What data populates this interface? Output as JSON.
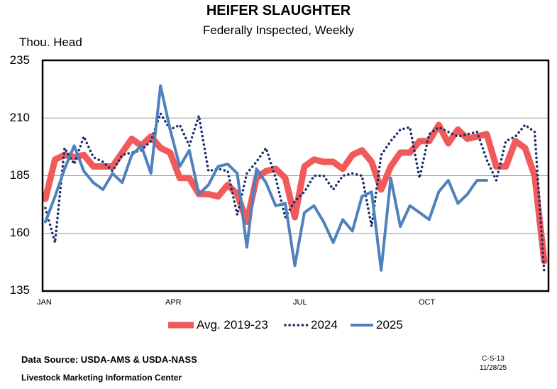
{
  "chart_data": {
    "type": "line",
    "title": "HEIFER SLAUGHTER",
    "subtitle": "Federally Inspected, Weekly",
    "ylabel": "Thou. Head",
    "ylim": [
      135,
      235
    ],
    "yticks": [
      135,
      160,
      185,
      210,
      235
    ],
    "xlim": [
      1,
      53
    ],
    "xtick_labels": [
      {
        "label": "JAN",
        "week": 1
      },
      {
        "label": "APR",
        "week": 14
      },
      {
        "label": "JUL",
        "week": 27
      },
      {
        "label": "OCT",
        "week": 40
      }
    ],
    "grid": true,
    "legend_position": "bottom",
    "series": [
      {
        "name": "Avg. 2019-23",
        "color": "#f05a5a",
        "style": "thick",
        "x": [
          1,
          2,
          3,
          4,
          5,
          6,
          7,
          8,
          9,
          10,
          11,
          12,
          13,
          14,
          15,
          16,
          17,
          18,
          19,
          20,
          21,
          22,
          23,
          24,
          25,
          26,
          27,
          28,
          29,
          30,
          31,
          32,
          33,
          34,
          35,
          36,
          37,
          38,
          39,
          40,
          41,
          42,
          43,
          44,
          45,
          46,
          47,
          48,
          49,
          50,
          51,
          52,
          53
        ],
        "values": [
          175,
          192,
          194,
          193,
          194,
          189,
          189,
          189,
          195,
          201,
          198,
          202,
          197,
          195,
          184,
          184,
          177,
          177,
          176,
          181,
          177,
          165,
          184,
          187,
          188,
          184,
          167,
          189,
          192,
          191,
          191,
          188,
          194,
          196,
          191,
          179,
          189,
          195,
          195,
          200,
          200,
          207,
          199,
          205,
          201,
          202,
          203,
          189,
          189,
          200,
          197,
          185,
          148
        ]
      },
      {
        "name": "2024",
        "color": "#1a2d6b",
        "style": "dotted",
        "x": [
          1,
          2,
          3,
          4,
          5,
          6,
          7,
          8,
          9,
          10,
          11,
          12,
          13,
          14,
          15,
          16,
          17,
          18,
          19,
          20,
          21,
          22,
          23,
          24,
          25,
          26,
          27,
          28,
          29,
          30,
          31,
          32,
          33,
          34,
          35,
          36,
          37,
          38,
          39,
          40,
          41,
          42,
          43,
          44,
          45,
          46,
          47,
          48,
          49,
          50,
          51,
          52,
          53
        ],
        "values": [
          171,
          156,
          197,
          190,
          202,
          193,
          191,
          187,
          194,
          195,
          196,
          200,
          212,
          205,
          207,
          198,
          211,
          187,
          188,
          187,
          168,
          186,
          191,
          197,
          184,
          167,
          174,
          178,
          185,
          185,
          179,
          185,
          186,
          185,
          163,
          194,
          200,
          205,
          206,
          184,
          203,
          206,
          204,
          202,
          203,
          204,
          192,
          183,
          200,
          202,
          207,
          204,
          143
        ]
      },
      {
        "name": "2025",
        "color": "#4f81bd",
        "style": "solid",
        "x": [
          1,
          2,
          3,
          4,
          5,
          6,
          7,
          8,
          9,
          10,
          11,
          12,
          13,
          14,
          15,
          16,
          17,
          18,
          19,
          20,
          21,
          22,
          23,
          24,
          25,
          26,
          27,
          28,
          29,
          30,
          31,
          32,
          33,
          34,
          35,
          36,
          37,
          38,
          39,
          40,
          41,
          42,
          43,
          44,
          45,
          46,
          47
        ],
        "values": [
          165,
          176,
          188,
          198,
          187,
          182,
          179,
          186,
          182,
          194,
          198,
          186,
          224,
          205,
          189,
          196,
          177,
          181,
          189,
          190,
          186,
          154,
          188,
          182,
          172,
          173,
          146,
          169,
          172,
          165,
          156,
          166,
          161,
          176,
          178,
          144,
          184,
          163,
          172,
          169,
          166,
          178,
          183,
          173,
          177,
          183,
          183
        ]
      }
    ]
  },
  "legend": {
    "avg": "Avg. 2019-23",
    "y2024": "2024",
    "y2025": "2025"
  },
  "footer": {
    "source": "Data Source:  USDA-AMS & USDA-NASS",
    "org": "Livestock Marketing Information Center",
    "code": "C-S-13",
    "date": "11/28/25"
  }
}
